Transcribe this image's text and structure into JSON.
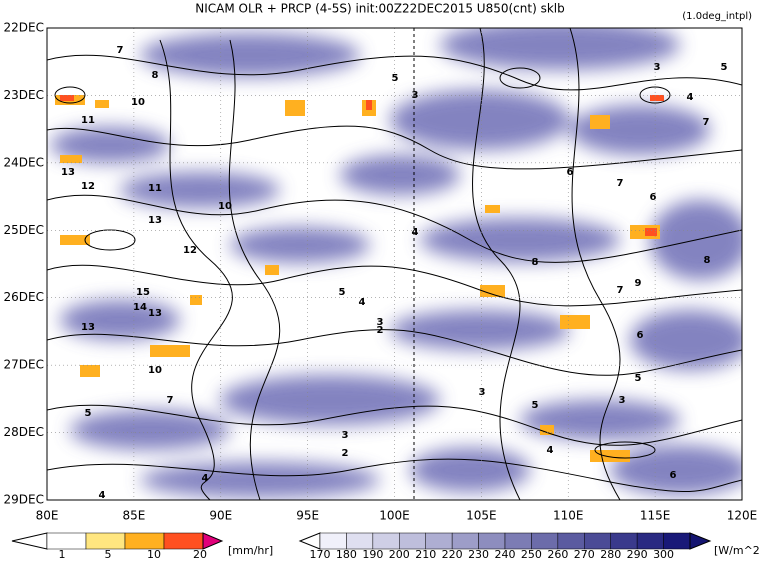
{
  "title": "NICAM  OLR + PRCP (4-5S) init:00Z22DEC2015 U850(cnt) sklb",
  "note": "(1.0deg_intpl)",
  "y_axis": {
    "labels": [
      "22DEC",
      "23DEC",
      "24DEC",
      "25DEC",
      "26DEC",
      "27DEC",
      "28DEC",
      "29DEC"
    ]
  },
  "x_axis": {
    "labels": [
      "80E",
      "85E",
      "90E",
      "95E",
      "100E",
      "105E",
      "110E",
      "115E",
      "120E"
    ]
  },
  "precip_legend": {
    "labels": [
      1,
      5,
      10,
      20
    ],
    "unit": "[mm/hr]"
  },
  "olr_legend": {
    "labels": [
      170,
      180,
      190,
      200,
      210,
      220,
      230,
      240,
      250,
      260,
      270,
      280,
      290,
      300
    ],
    "unit": "[W/m^2]"
  },
  "contour_labels": [
    7,
    8,
    10,
    11,
    13,
    12,
    11,
    10,
    13,
    12,
    15,
    14,
    13,
    13,
    10,
    7,
    5,
    5,
    3,
    4,
    5,
    4,
    3,
    2,
    3,
    2,
    4,
    4,
    3,
    5,
    6,
    7,
    6,
    8,
    7,
    6,
    5,
    3,
    4,
    6,
    3,
    5,
    4,
    7,
    9,
    8
  ]
}
